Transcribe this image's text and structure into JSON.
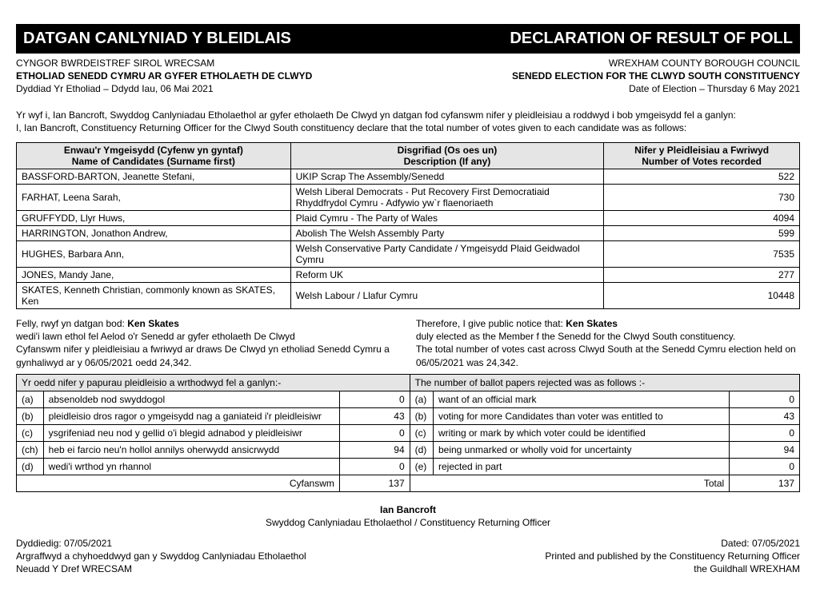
{
  "banner": {
    "welsh": "DATGAN CANLYNIAD Y BLEIDLAIS",
    "english": "DECLARATION OF RESULT OF POLL"
  },
  "header": {
    "left": {
      "council": "CYNGOR BWRDEISTREF SIROL WRECSAM",
      "election": "ETHOLIAD SENEDD CYMRU AR GYFER ETHOLAETH DE CLWYD",
      "date": "Dyddiad Yr Etholiad – Ddydd Iau, 06 Mai 2021"
    },
    "right": {
      "council": "WREXHAM COUNTY BOROUGH COUNCIL",
      "election": "SENEDD ELECTION FOR THE  CLWYD SOUTH CONSTITUENCY",
      "date": "Date of Election – Thursday 6 May 2021"
    }
  },
  "declaration": {
    "welsh": "Yr wyf i, Ian Bancroft, Swyddog Canlyniadau Etholaethol ar gyfer etholaeth De Clwyd  yn datgan fod cyfanswm nifer y pleidleisiau a roddwyd i bob ymgeisydd fel a ganlyn:",
    "english": "I, Ian Bancroft, Constituency Returning Officer for the  Clwyd South constituency declare that the total number of votes given to each candidate was as follows:"
  },
  "table_headers": {
    "name_w": "Enwau'r Ymgeisydd (Cyfenw yn gyntaf)",
    "name_e": "Name of Candidates (Surname first)",
    "desc_w": "Disgrifiad (Os oes un)",
    "desc_e": "Description (If any)",
    "votes_w": "Nifer y Pleidleisiau a Fwriwyd",
    "votes_e": "Number of Votes recorded"
  },
  "candidates": [
    {
      "name": "BASSFORD-BARTON, Jeanette Stefani,",
      "desc": "UKIP Scrap The Assembly/Senedd",
      "votes": "522"
    },
    {
      "name": "FARHAT, Leena Sarah,",
      "desc": "Welsh Liberal Democrats - Put Recovery First Democratiaid Rhyddfrydol Cymru - Adfywio yw`r flaenoriaeth",
      "votes": "730"
    },
    {
      "name": "GRUFFYDD, Llyr Huws,",
      "desc": "Plaid Cymru - The Party of Wales",
      "votes": "4094"
    },
    {
      "name": "HARRINGTON, Jonathon Andrew,",
      "desc": "Abolish The Welsh Assembly Party",
      "votes": "599"
    },
    {
      "name": "HUGHES, Barbara Ann,",
      "desc": "Welsh Conservative Party Candidate / Ymgeisydd Plaid Geidwadol Cymru",
      "votes": "7535"
    },
    {
      "name": "JONES, Mandy Jane,",
      "desc": "Reform UK",
      "votes": "277"
    },
    {
      "name": "SKATES, Kenneth Christian, commonly known as SKATES, Ken",
      "desc": "Welsh Labour / Llafur Cymru",
      "votes": "10448"
    }
  ],
  "notice": {
    "welsh": {
      "pre": "Felly, rwyf yn datgan bod: ",
      "winner": "Ken Skates",
      "l1": "wedi'i lawn ethol fel Aelod o'r Senedd ar gyfer etholaeth De Clwyd",
      "l2": "Cyfanswm nifer y pleidleisiau a fwriwyd ar draws De Clwyd yn etholiad Senedd Cymru a gynhaliwyd ar y 06/05/2021 oedd  24,342."
    },
    "english": {
      "pre": "Therefore, I give public notice that: ",
      "winner": "Ken Skates",
      "l1": " duly elected as the Member f the Senedd for the Clwyd South constituency.",
      "l2": "The total number of votes cast across Clwyd South at the Senedd Cymru election held on 06/05/2021 was 24,342."
    }
  },
  "rejected_header": {
    "welsh": "Yr oedd nifer y papurau pleidleisio a wrthodwyd fel a ganlyn:-",
    "english": "The number of ballot papers rejected was as follows :-"
  },
  "rejected": {
    "welsh": [
      {
        "k": "(a)",
        "r": "absenoldeb nod swyddogol",
        "n": "0"
      },
      {
        "k": "(b)",
        "r": "pleidleisio dros ragor o ymgeisydd nag a ganiateid i'r pleidleisiwr",
        "n": "43"
      },
      {
        "k": "(c)",
        "r": "ysgrifeniad neu nod y gellid o'i blegid adnabod y pleidleisiwr",
        "n": "0"
      },
      {
        "k": "(ch)",
        "r": "heb ei farcio neu'n hollol annilys oherwydd ansicrwydd",
        "n": "94"
      },
      {
        "k": "(d)",
        "r": "wedi'i wrthod yn rhannol",
        "n": "0"
      }
    ],
    "english": [
      {
        "k": "(a)",
        "r": "want of an official mark",
        "n": "0"
      },
      {
        "k": "(b)",
        "r": "voting for more Candidates than voter was entitled to",
        "n": "43"
      },
      {
        "k": "(c)",
        "r": "writing or mark by which voter could be identified",
        "n": "0"
      },
      {
        "k": "(d)",
        "r": "being unmarked or wholly void for uncertainty",
        "n": "94"
      },
      {
        "k": "(e)",
        "r": "rejected in part",
        "n": "0"
      }
    ],
    "total_w_label": "Cyfanswm",
    "total_e_label": "Total",
    "total": "137"
  },
  "officer": {
    "name": "Ian Bancroft",
    "title": "Swyddog Canlyniadau Etholaethol / Constituency Returning Officer"
  },
  "footer": {
    "left": {
      "dated": "Dyddiedig: 07/05/2021",
      "printed": "Argraffwyd a chyhoeddwyd gan y Swyddog Canlyniadau Etholaethol",
      "place": "Neuadd Y Dref WRECSAM"
    },
    "right": {
      "dated": "Dated: 07/05/2021",
      "printed": "Printed and published by the Constituency Returning Officer",
      "place": "the Guildhall  WREXHAM"
    }
  }
}
